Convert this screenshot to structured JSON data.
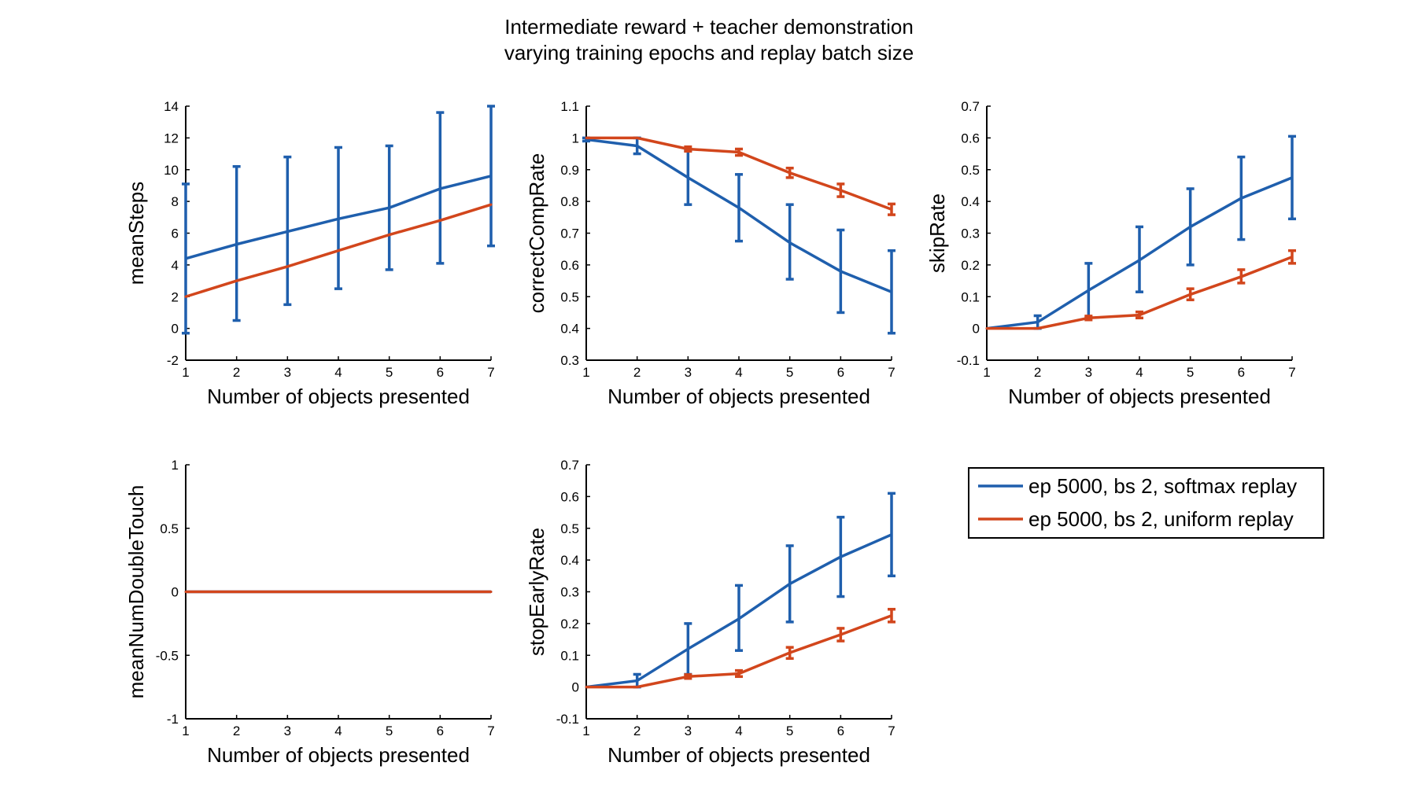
{
  "figure": {
    "title_line1": "Intermediate reward + teacher demonstration",
    "title_line2": "varying training epochs and replay batch size"
  },
  "legend": [
    {
      "label": "ep 5000, bs 2, softmax replay",
      "color": "#1f5fad"
    },
    {
      "label": "ep 5000, bs 2, uniform replay",
      "color": "#d2461c"
    }
  ],
  "chart_data": [
    {
      "type": "line",
      "x": [
        1,
        2,
        3,
        4,
        5,
        6,
        7
      ],
      "xlabel": "Number of objects presented",
      "ylabel": "meanSteps",
      "xlim": [
        1,
        7
      ],
      "ylim": [
        -2,
        14
      ],
      "yticks": [
        -2,
        0,
        2,
        4,
        6,
        8,
        10,
        12,
        14
      ],
      "ytick_labels": [
        "-2",
        "0",
        "2",
        "4",
        "6",
        "8",
        "10",
        "12",
        "14"
      ],
      "xticks": [
        1,
        2,
        3,
        4,
        5,
        6,
        7
      ],
      "series": [
        {
          "name": "ep 5000, bs 2, softmax replay",
          "color": "#1f5fad",
          "values": [
            4.4,
            5.3,
            6.1,
            6.9,
            7.6,
            8.8,
            9.6
          ],
          "err_low": [
            -0.3,
            0.5,
            1.5,
            2.5,
            3.7,
            4.1,
            5.2
          ],
          "err_high": [
            9.1,
            10.2,
            10.8,
            11.4,
            11.5,
            13.6,
            14.0
          ]
        },
        {
          "name": "ep 5000, bs 2, uniform replay",
          "color": "#d2461c",
          "values": [
            2.0,
            3.0,
            3.9,
            4.9,
            5.9,
            6.8,
            7.8
          ]
        }
      ]
    },
    {
      "type": "line",
      "x": [
        1,
        2,
        3,
        4,
        5,
        6,
        7
      ],
      "xlabel": "Number of objects presented",
      "ylabel": "correctCompRate",
      "xlim": [
        1,
        7
      ],
      "ylim": [
        0.3,
        1.1
      ],
      "yticks": [
        0.3,
        0.4,
        0.5,
        0.6,
        0.7,
        0.8,
        0.9,
        1.0,
        1.1
      ],
      "ytick_labels": [
        "0.3",
        "0.4",
        "0.5",
        "0.6",
        "0.7",
        "0.8",
        "0.9",
        "1",
        "1.1"
      ],
      "xticks": [
        1,
        2,
        3,
        4,
        5,
        6,
        7
      ],
      "series": [
        {
          "name": "ep 5000, bs 2, softmax replay",
          "color": "#1f5fad",
          "values": [
            0.995,
            0.975,
            0.875,
            0.78,
            0.67,
            0.58,
            0.515
          ],
          "err_low": [
            0.99,
            0.95,
            0.79,
            0.675,
            0.555,
            0.45,
            0.385
          ],
          "err_high": [
            1.0,
            1.0,
            0.96,
            0.885,
            0.79,
            0.71,
            0.645
          ]
        },
        {
          "name": "ep 5000, bs 2, uniform replay",
          "color": "#d2461c",
          "values": [
            1.0,
            1.0,
            0.965,
            0.955,
            0.89,
            0.835,
            0.775
          ],
          "err_low": [
            1.0,
            1.0,
            0.958,
            0.945,
            0.875,
            0.815,
            0.758
          ],
          "err_high": [
            1.0,
            1.0,
            0.972,
            0.965,
            0.905,
            0.855,
            0.792
          ]
        }
      ]
    },
    {
      "type": "line",
      "x": [
        1,
        2,
        3,
        4,
        5,
        6,
        7
      ],
      "xlabel": "Number of objects presented",
      "ylabel": "skipRate",
      "xlim": [
        1,
        7
      ],
      "ylim": [
        -0.1,
        0.7
      ],
      "yticks": [
        -0.1,
        0,
        0.1,
        0.2,
        0.3,
        0.4,
        0.5,
        0.6,
        0.7
      ],
      "ytick_labels": [
        "-0.1",
        "0",
        "0.1",
        "0.2",
        "0.3",
        "0.4",
        "0.5",
        "0.6",
        "0.7"
      ],
      "xticks": [
        1,
        2,
        3,
        4,
        5,
        6,
        7
      ],
      "series": [
        {
          "name": "ep 5000, bs 2, softmax replay",
          "color": "#1f5fad",
          "values": [
            0,
            0.02,
            0.12,
            0.215,
            0.32,
            0.41,
            0.475
          ],
          "err_low": [
            0,
            0.0,
            0.035,
            0.115,
            0.2,
            0.28,
            0.345
          ],
          "err_high": [
            0,
            0.04,
            0.205,
            0.32,
            0.44,
            0.54,
            0.605
          ]
        },
        {
          "name": "ep 5000, bs 2, uniform replay",
          "color": "#d2461c",
          "values": [
            0,
            0,
            0.033,
            0.042,
            0.107,
            0.163,
            0.225
          ],
          "err_low": [
            0,
            0,
            0.027,
            0.033,
            0.09,
            0.143,
            0.205
          ],
          "err_high": [
            0,
            0,
            0.039,
            0.052,
            0.125,
            0.185,
            0.245
          ]
        }
      ]
    },
    {
      "type": "line",
      "x": [
        1,
        2,
        3,
        4,
        5,
        6,
        7
      ],
      "xlabel": "Number of objects presented",
      "ylabel": "meanNumDoubleTouch",
      "xlim": [
        1,
        7
      ],
      "ylim": [
        -1,
        1
      ],
      "yticks": [
        -1,
        -0.5,
        0,
        0.5,
        1
      ],
      "ytick_labels": [
        "-1",
        "-0.5",
        "0",
        "0.5",
        "1"
      ],
      "xticks": [
        1,
        2,
        3,
        4,
        5,
        6,
        7
      ],
      "series": [
        {
          "name": "ep 5000, bs 2, softmax replay",
          "color": "#1f5fad",
          "values": [
            0,
            0,
            0,
            0,
            0,
            0,
            0
          ]
        },
        {
          "name": "ep 5000, bs 2, uniform replay",
          "color": "#d2461c",
          "values": [
            0,
            0,
            0,
            0,
            0,
            0,
            0
          ]
        }
      ]
    },
    {
      "type": "line",
      "x": [
        1,
        2,
        3,
        4,
        5,
        6,
        7
      ],
      "xlabel": "Number of objects presented",
      "ylabel": "stopEarlyRate",
      "xlim": [
        1,
        7
      ],
      "ylim": [
        -0.1,
        0.7
      ],
      "yticks": [
        -0.1,
        0,
        0.1,
        0.2,
        0.3,
        0.4,
        0.5,
        0.6,
        0.7
      ],
      "ytick_labels": [
        "-0.1",
        "0",
        "0.1",
        "0.2",
        "0.3",
        "0.4",
        "0.5",
        "0.6",
        "0.7"
      ],
      "xticks": [
        1,
        2,
        3,
        4,
        5,
        6,
        7
      ],
      "series": [
        {
          "name": "ep 5000, bs 2, softmax replay",
          "color": "#1f5fad",
          "values": [
            0,
            0.02,
            0.12,
            0.215,
            0.325,
            0.41,
            0.48
          ],
          "err_low": [
            0,
            0.0,
            0.04,
            0.115,
            0.205,
            0.285,
            0.35
          ],
          "err_high": [
            0,
            0.04,
            0.2,
            0.32,
            0.445,
            0.535,
            0.61
          ]
        },
        {
          "name": "ep 5000, bs 2, uniform replay",
          "color": "#d2461c",
          "values": [
            0,
            0,
            0.033,
            0.042,
            0.108,
            0.165,
            0.225
          ],
          "err_low": [
            0,
            0,
            0.027,
            0.033,
            0.09,
            0.145,
            0.205
          ],
          "err_high": [
            0,
            0,
            0.039,
            0.052,
            0.125,
            0.185,
            0.245
          ]
        }
      ]
    }
  ]
}
